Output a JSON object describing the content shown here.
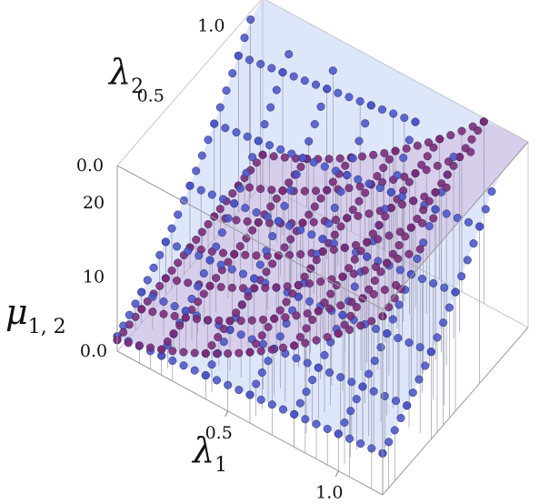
{
  "chart_data": {
    "type": "scatter",
    "subtype": "3d-surface-with-points",
    "title": "",
    "axes": {
      "x": {
        "symbol": "λ",
        "subscript": "1",
        "range": [
          0,
          1.2
        ],
        "ticks": [
          "0.0",
          "0.5",
          "1.0"
        ]
      },
      "y": {
        "symbol": "λ",
        "subscript": "2",
        "range": [
          0,
          1.2
        ],
        "ticks": [
          "0.0",
          "0.5",
          "1.0"
        ]
      },
      "z": {
        "symbol": "μ",
        "subscript": "1, 2",
        "range": [
          0,
          25
        ],
        "ticks": [
          "0.0",
          "10",
          "20"
        ]
      }
    },
    "grid": false,
    "box": true,
    "legend": "none",
    "series": [
      {
        "color": "#4a55c8",
        "surface_color": "#9fb6ee",
        "grid_lambda1": [
          0.0,
          0.2,
          0.4,
          0.6,
          0.8,
          1.0,
          1.2
        ],
        "grid_lambda2": [
          0.0,
          0.2,
          0.4,
          0.6,
          0.8,
          1.0,
          1.2
        ],
        "z_at": "lambda2_dominant"
      },
      {
        "color": "#7a2a78",
        "surface_color": "#c9a0cf",
        "grid_lambda1": [
          0.0,
          0.2,
          0.4,
          0.6,
          0.8,
          1.0,
          1.2
        ],
        "grid_lambda2": [
          0.0,
          0.2,
          0.4,
          0.6,
          0.8,
          1.0,
          1.2
        ],
        "z_at": "lambda1_dominant"
      }
    ]
  }
}
